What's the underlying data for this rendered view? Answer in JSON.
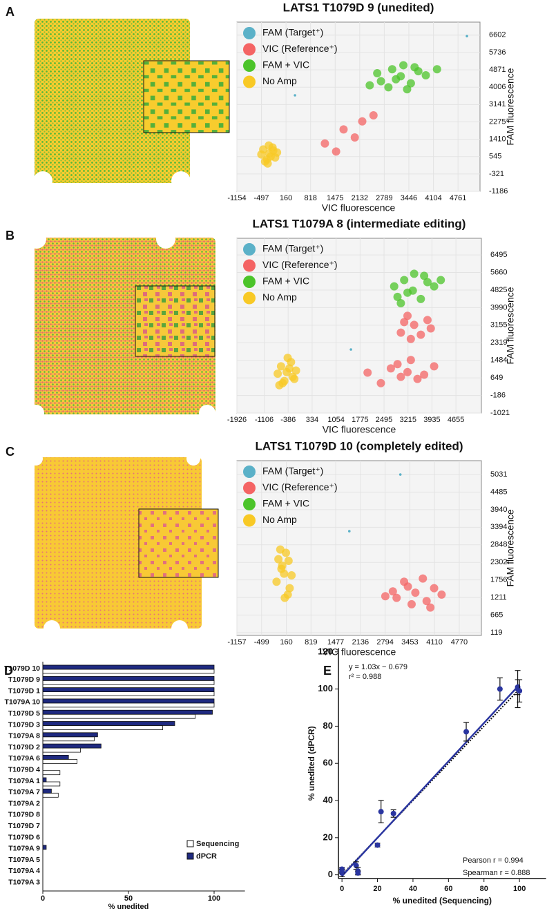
{
  "chart_data": [
    {
      "type": "scatter",
      "panel": "A",
      "title": "LATS1 T1079D  9 (unedited)",
      "xlabel": "VIC fluorescence",
      "ylabel": "FAM fluorescence",
      "xlim": [
        -1154,
        5350
      ],
      "ylim": [
        -1186,
        7250
      ],
      "xticks": [
        -1154,
        -497,
        160,
        818,
        1475,
        2132,
        2789,
        3446,
        4104,
        4761
      ],
      "yticks": [
        -1186,
        -321,
        545,
        1410,
        2275,
        3141,
        4006,
        4871,
        5736,
        6602
      ],
      "grid": true,
      "legend": "upper left",
      "series": [
        {
          "name": "FAM (Target⁺)",
          "color": "#5bb1c8",
          "x": [
            5000,
            400
          ],
          "y": [
            6550,
            3600
          ]
        },
        {
          "name": "VIC (Reference⁺)",
          "color": "#f46464",
          "x": [
            1200,
            1700,
            2000,
            2500,
            1500,
            2200
          ],
          "y": [
            1200,
            1900,
            1500,
            2600,
            800,
            2300
          ]
        },
        {
          "name": "FAM + VIC",
          "color": "#4cc42a",
          "x": [
            3230,
            2700,
            3700,
            3000,
            3500,
            2900,
            3900,
            3300,
            2600,
            3600,
            3100,
            4200,
            2400,
            3400
          ],
          "y": [
            4550,
            4300,
            4800,
            4900,
            4200,
            4000,
            4600,
            5100,
            4700,
            5000,
            4400,
            4900,
            4100,
            3900
          ]
        },
        {
          "name": "No Amp",
          "color": "#f8c925",
          "x": [
            -290,
            -450,
            -130,
            -350,
            -200,
            -500,
            -80,
            -300,
            -400,
            -180,
            -250,
            -330
          ],
          "y": [
            700,
            900,
            500,
            400,
            1000,
            650,
            750,
            1100,
            300,
            850,
            550,
            200
          ]
        }
      ]
    },
    {
      "type": "scatter",
      "panel": "B",
      "title": "LATS1 T1079A 8 (intermediate editing)",
      "xlabel": "VIC fluorescence",
      "ylabel": "FAM fluorescence",
      "xlim": [
        -1926,
        5420
      ],
      "ylim": [
        -1021,
        7286
      ],
      "xticks": [
        -1926,
        -1106,
        -386,
        334,
        1054,
        1775,
        2495,
        3215,
        3935,
        4655
      ],
      "yticks": [
        -1021,
        -186,
        649,
        1484,
        2319,
        3155,
        3990,
        4825,
        5660,
        6495
      ],
      "grid": true,
      "legend": "upper left",
      "series": [
        {
          "name": "FAM (Target⁺)",
          "color": "#5bb1c8",
          "x": [
            1500
          ],
          "y": [
            2000
          ]
        },
        {
          "name": "VIC (Reference⁺)",
          "color": "#f46464",
          "x": [
            3400,
            3000,
            3800,
            3200,
            3600,
            3100,
            3900,
            3300,
            3200,
            2700,
            3700,
            2900,
            3500,
            3000,
            4000,
            3300,
            2400,
            2000
          ],
          "y": [
            3170,
            2800,
            3400,
            3600,
            2700,
            3300,
            3000,
            2500,
            925,
            1100,
            800,
            1300,
            600,
            700,
            1200,
            1500,
            400,
            900
          ]
        },
        {
          "name": "FAM + VIC",
          "color": "#4cc42a",
          "x": [
            3360,
            2900,
            3800,
            3100,
            3600,
            3000,
            4000,
            3400,
            2800,
            3700,
            3200,
            4200
          ],
          "y": [
            4800,
            4500,
            5200,
            5300,
            4400,
            4200,
            5000,
            5600,
            5000,
            5500,
            4700,
            5300
          ]
        },
        {
          "name": "No Amp",
          "color": "#f8c925",
          "x": [
            -430,
            -600,
            -250,
            -500,
            -300,
            -700,
            -150,
            -400,
            -550,
            -350,
            -200,
            -650
          ],
          "y": [
            925,
            1200,
            700,
            500,
            1400,
            850,
            1000,
            1600,
            400,
            1100,
            600,
            300
          ]
        }
      ]
    },
    {
      "type": "scatter",
      "panel": "C",
      "title": "LATS1 T1079D 10 (completely edited)",
      "xlabel": "VIC fluorescence",
      "ylabel": "FAM fluorescence",
      "xlim": [
        -1157,
        5360
      ],
      "ylim": [
        33,
        5460
      ],
      "xticks": [
        -1157,
        -499,
        160,
        819,
        1477,
        2136,
        2794,
        3453,
        4110,
        4770
      ],
      "yticks": [
        119,
        665,
        1211,
        1756,
        2302,
        2848,
        3394,
        3940,
        4485,
        5031
      ],
      "grid": true,
      "legend": "upper left",
      "series": [
        {
          "name": "FAM (Target⁺)",
          "color": "#5bb1c8",
          "x": [
            3200,
            1840
          ],
          "y": [
            5030,
            3270
          ]
        },
        {
          "name": "VIC (Reference⁺)",
          "color": "#f46464",
          "x": [
            3600,
            3100,
            4100,
            3300,
            3900,
            3000,
            4300,
            3500,
            2800,
            3800,
            3400,
            4000
          ],
          "y": [
            1360,
            1200,
            1500,
            1700,
            1100,
            1400,
            1300,
            1000,
            1250,
            1800,
            1550,
            900
          ]
        },
        {
          "name": "FAM + VIC",
          "color": "#4cc42a",
          "x": [],
          "y": []
        },
        {
          "name": "No Amp",
          "color": "#f8c925",
          "x": [
            100,
            -50,
            250,
            0,
            200,
            50,
            300,
            -100,
            150,
            120,
            30,
            220
          ],
          "y": [
            1950,
            2400,
            1500,
            2700,
            1300,
            2200,
            1900,
            1700,
            2600,
            1200,
            2100,
            2350
          ]
        }
      ]
    },
    {
      "type": "barh",
      "panel": "D",
      "xlabel": "% unedited",
      "xlim": [
        0,
        118
      ],
      "xticks": [
        0,
        50,
        100
      ],
      "legend": "lower right",
      "categories": [
        "T1079D 10",
        "T1079D 9",
        "T1079D 1",
        "T1079A 10",
        "T1079D 5",
        "T1079D 3",
        "T1079A 8",
        "T1079D 2",
        "T1079A 6",
        "T1079D 4",
        "T1079A 1",
        "T1079A 7",
        "T1079A 2",
        "T1079D 8",
        "T1079D 7",
        "T1079D 6",
        "T1079A 9",
        "T1079A 5",
        "T1079A 4",
        "T1079A 3"
      ],
      "series": [
        {
          "name": "Sequencing",
          "color": "#ffffff",
          "values": [
            100,
            100,
            100,
            100,
            89,
            70,
            30,
            22,
            20,
            10,
            10,
            9,
            0,
            0,
            0,
            0,
            0,
            0,
            0,
            0
          ]
        },
        {
          "name": "dPCR",
          "color": "#1f2a80",
          "values": [
            100,
            100,
            100,
            100,
            99,
            77,
            32,
            34,
            15,
            0,
            2,
            5,
            0,
            0,
            0,
            0,
            2,
            0,
            0,
            0
          ]
        }
      ]
    },
    {
      "type": "errorbar",
      "panel": "E",
      "xlabel": "% unedited (Sequencing)",
      "ylabel": "% unedited (dPCR)",
      "color": "#2a35a0",
      "xlim": [
        -2,
        115
      ],
      "ylim": [
        -2,
        122
      ],
      "xticks": [
        0,
        20,
        40,
        60,
        80,
        100
      ],
      "yticks": [
        0,
        20,
        40,
        60,
        80,
        100,
        120
      ],
      "x": [
        0,
        0,
        0,
        8,
        9,
        9,
        20,
        22,
        29,
        70,
        89,
        99,
        99,
        100
      ],
      "y": [
        1,
        3,
        2,
        5,
        2,
        1,
        16,
        34,
        33,
        77,
        100,
        100,
        101,
        99
      ],
      "yerr": [
        2,
        1,
        1,
        2,
        2,
        1,
        1,
        6,
        2,
        5,
        6,
        10,
        4,
        6
      ],
      "fit": {
        "slope": 1.03,
        "intercept": -0.679
      },
      "annotations": [
        "y = 1.03x − 0.679",
        "r² = 0.988",
        "Pearson r = 0.994",
        "Spearman r = 0.888"
      ]
    }
  ]
}
